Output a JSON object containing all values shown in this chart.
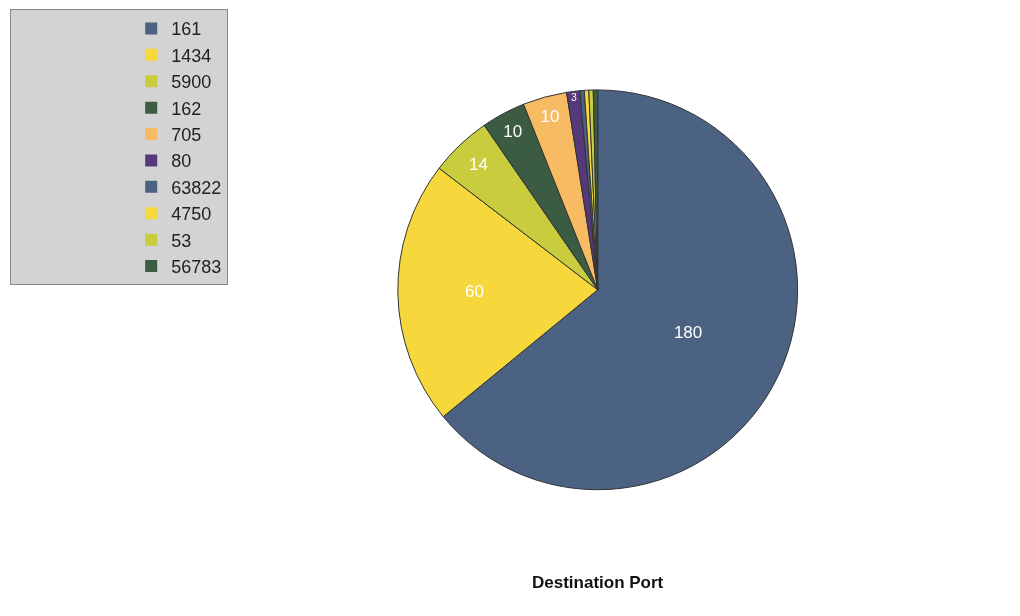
{
  "chart_data": {
    "type": "pie",
    "title": "Destination Port",
    "categories": [
      "161",
      "1434",
      "5900",
      "162",
      "705",
      "80",
      "63822",
      "4750",
      "53",
      "56783"
    ],
    "values": [
      180,
      60,
      14,
      10,
      10,
      3,
      1,
      1,
      1,
      1
    ],
    "value_labels": [
      "180",
      "60",
      "14",
      "10",
      "10",
      "3",
      null,
      null,
      null,
      null
    ],
    "colors": [
      "#4c6283",
      "#f6d83c",
      "#c9cc3c",
      "#3b5b42",
      "#f7bb64",
      "#55397a",
      "#4c6283",
      "#f6d83c",
      "#c9cc3c",
      "#3b5b42"
    ],
    "legend": "top left"
  }
}
